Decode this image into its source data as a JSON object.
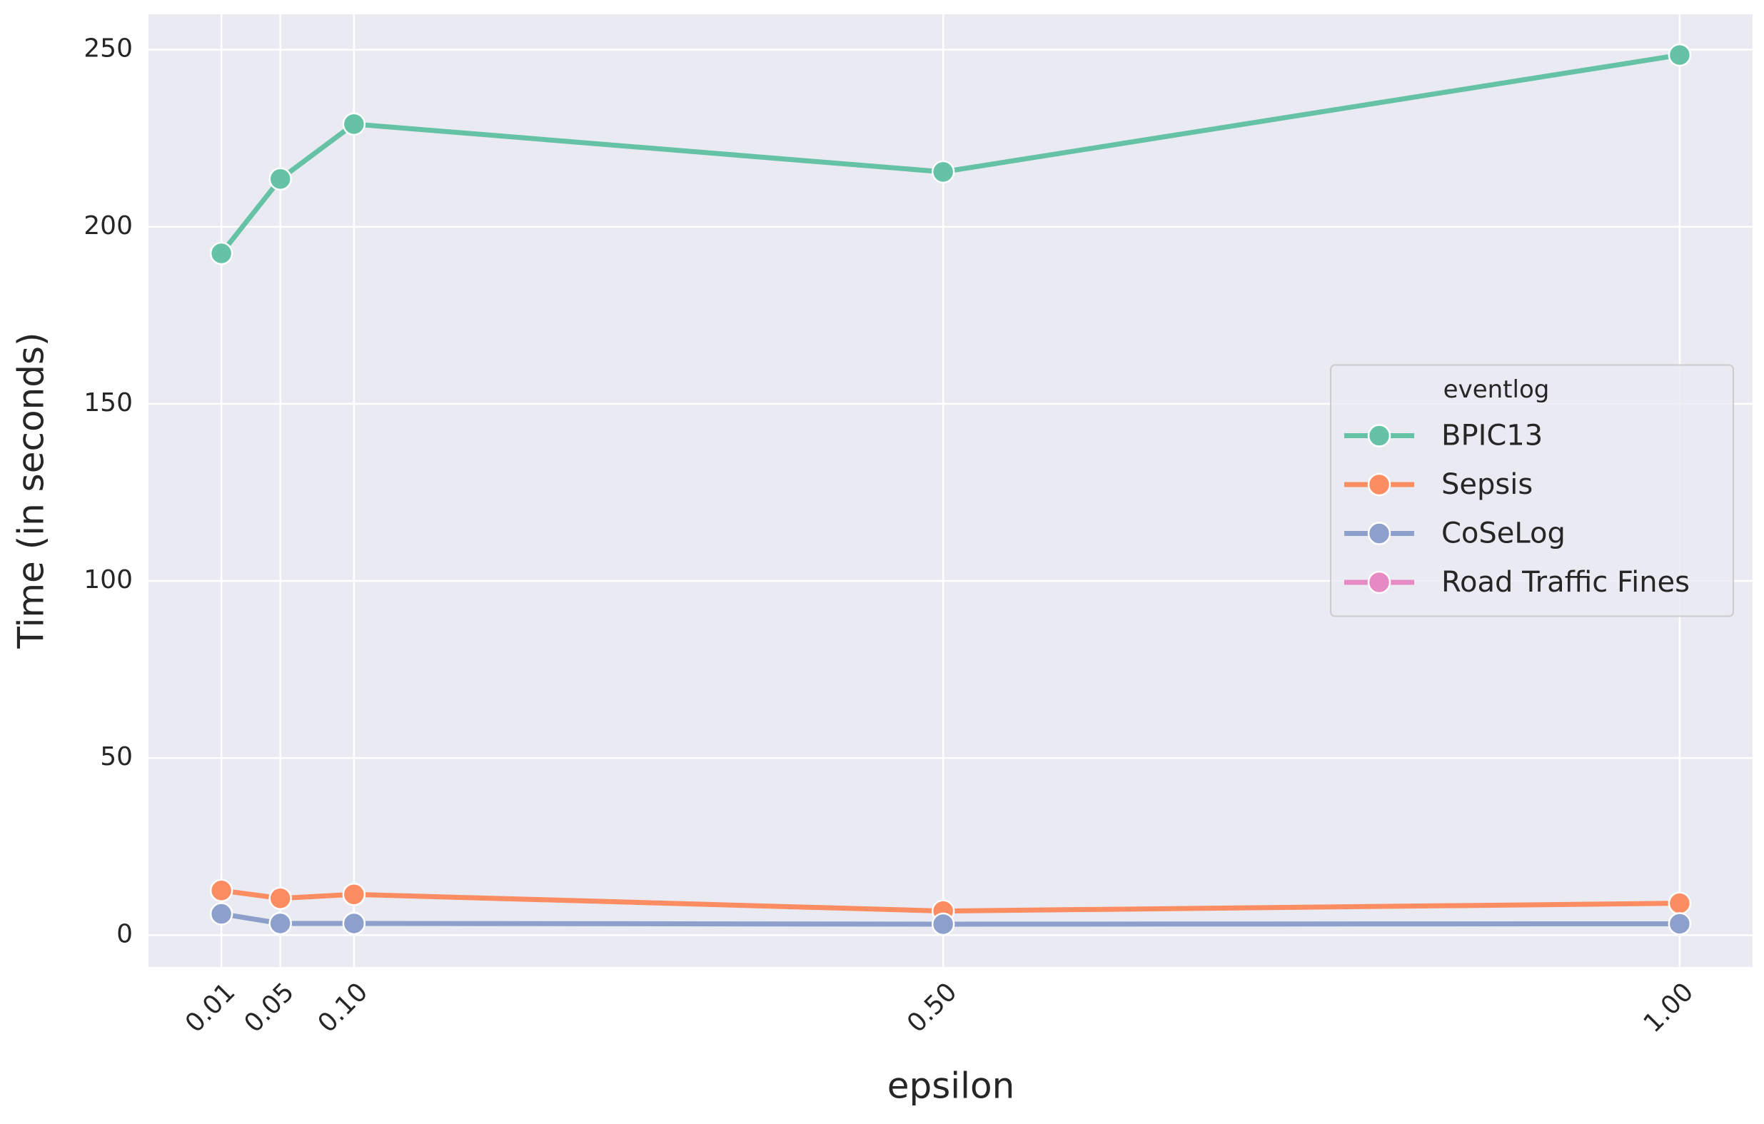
{
  "chart_data": {
    "type": "line",
    "x_label": "epsilon",
    "y_label": "Time (in seconds)",
    "x": [
      0.01,
      0.05,
      0.1,
      0.5,
      1.0
    ],
    "xticks": [
      {
        "value": 0.01,
        "label": "0.01"
      },
      {
        "value": 0.05,
        "label": "0.05"
      },
      {
        "value": 0.1,
        "label": "0.10"
      },
      {
        "value": 0.5,
        "label": "0.50"
      },
      {
        "value": 1.0,
        "label": "1.00"
      }
    ],
    "xlim": [
      -0.0395,
      1.0495
    ],
    "ylim": [
      -9,
      260
    ],
    "yticks": [
      0,
      50,
      100,
      150,
      200,
      250
    ],
    "grid": true,
    "legend_title": "eventlog",
    "legend_position": "center right",
    "series": [
      {
        "name": "BPIC13",
        "color": "#66c2a5",
        "values": [
          192.5,
          213.5,
          229,
          215.5,
          248.5
        ]
      },
      {
        "name": "Sepsis",
        "color": "#fc8d62",
        "values": [
          12.6,
          10.4,
          11.5,
          6.8,
          9
        ]
      },
      {
        "name": "CoSeLog",
        "color": "#8da0cb",
        "values": [
          6,
          3.3,
          3.3,
          3.1,
          3.2
        ]
      },
      {
        "name": "Road Traffic Fines",
        "color": "#e78ac3",
        "values": [
          null,
          null,
          null,
          null,
          null
        ]
      }
    ]
  }
}
